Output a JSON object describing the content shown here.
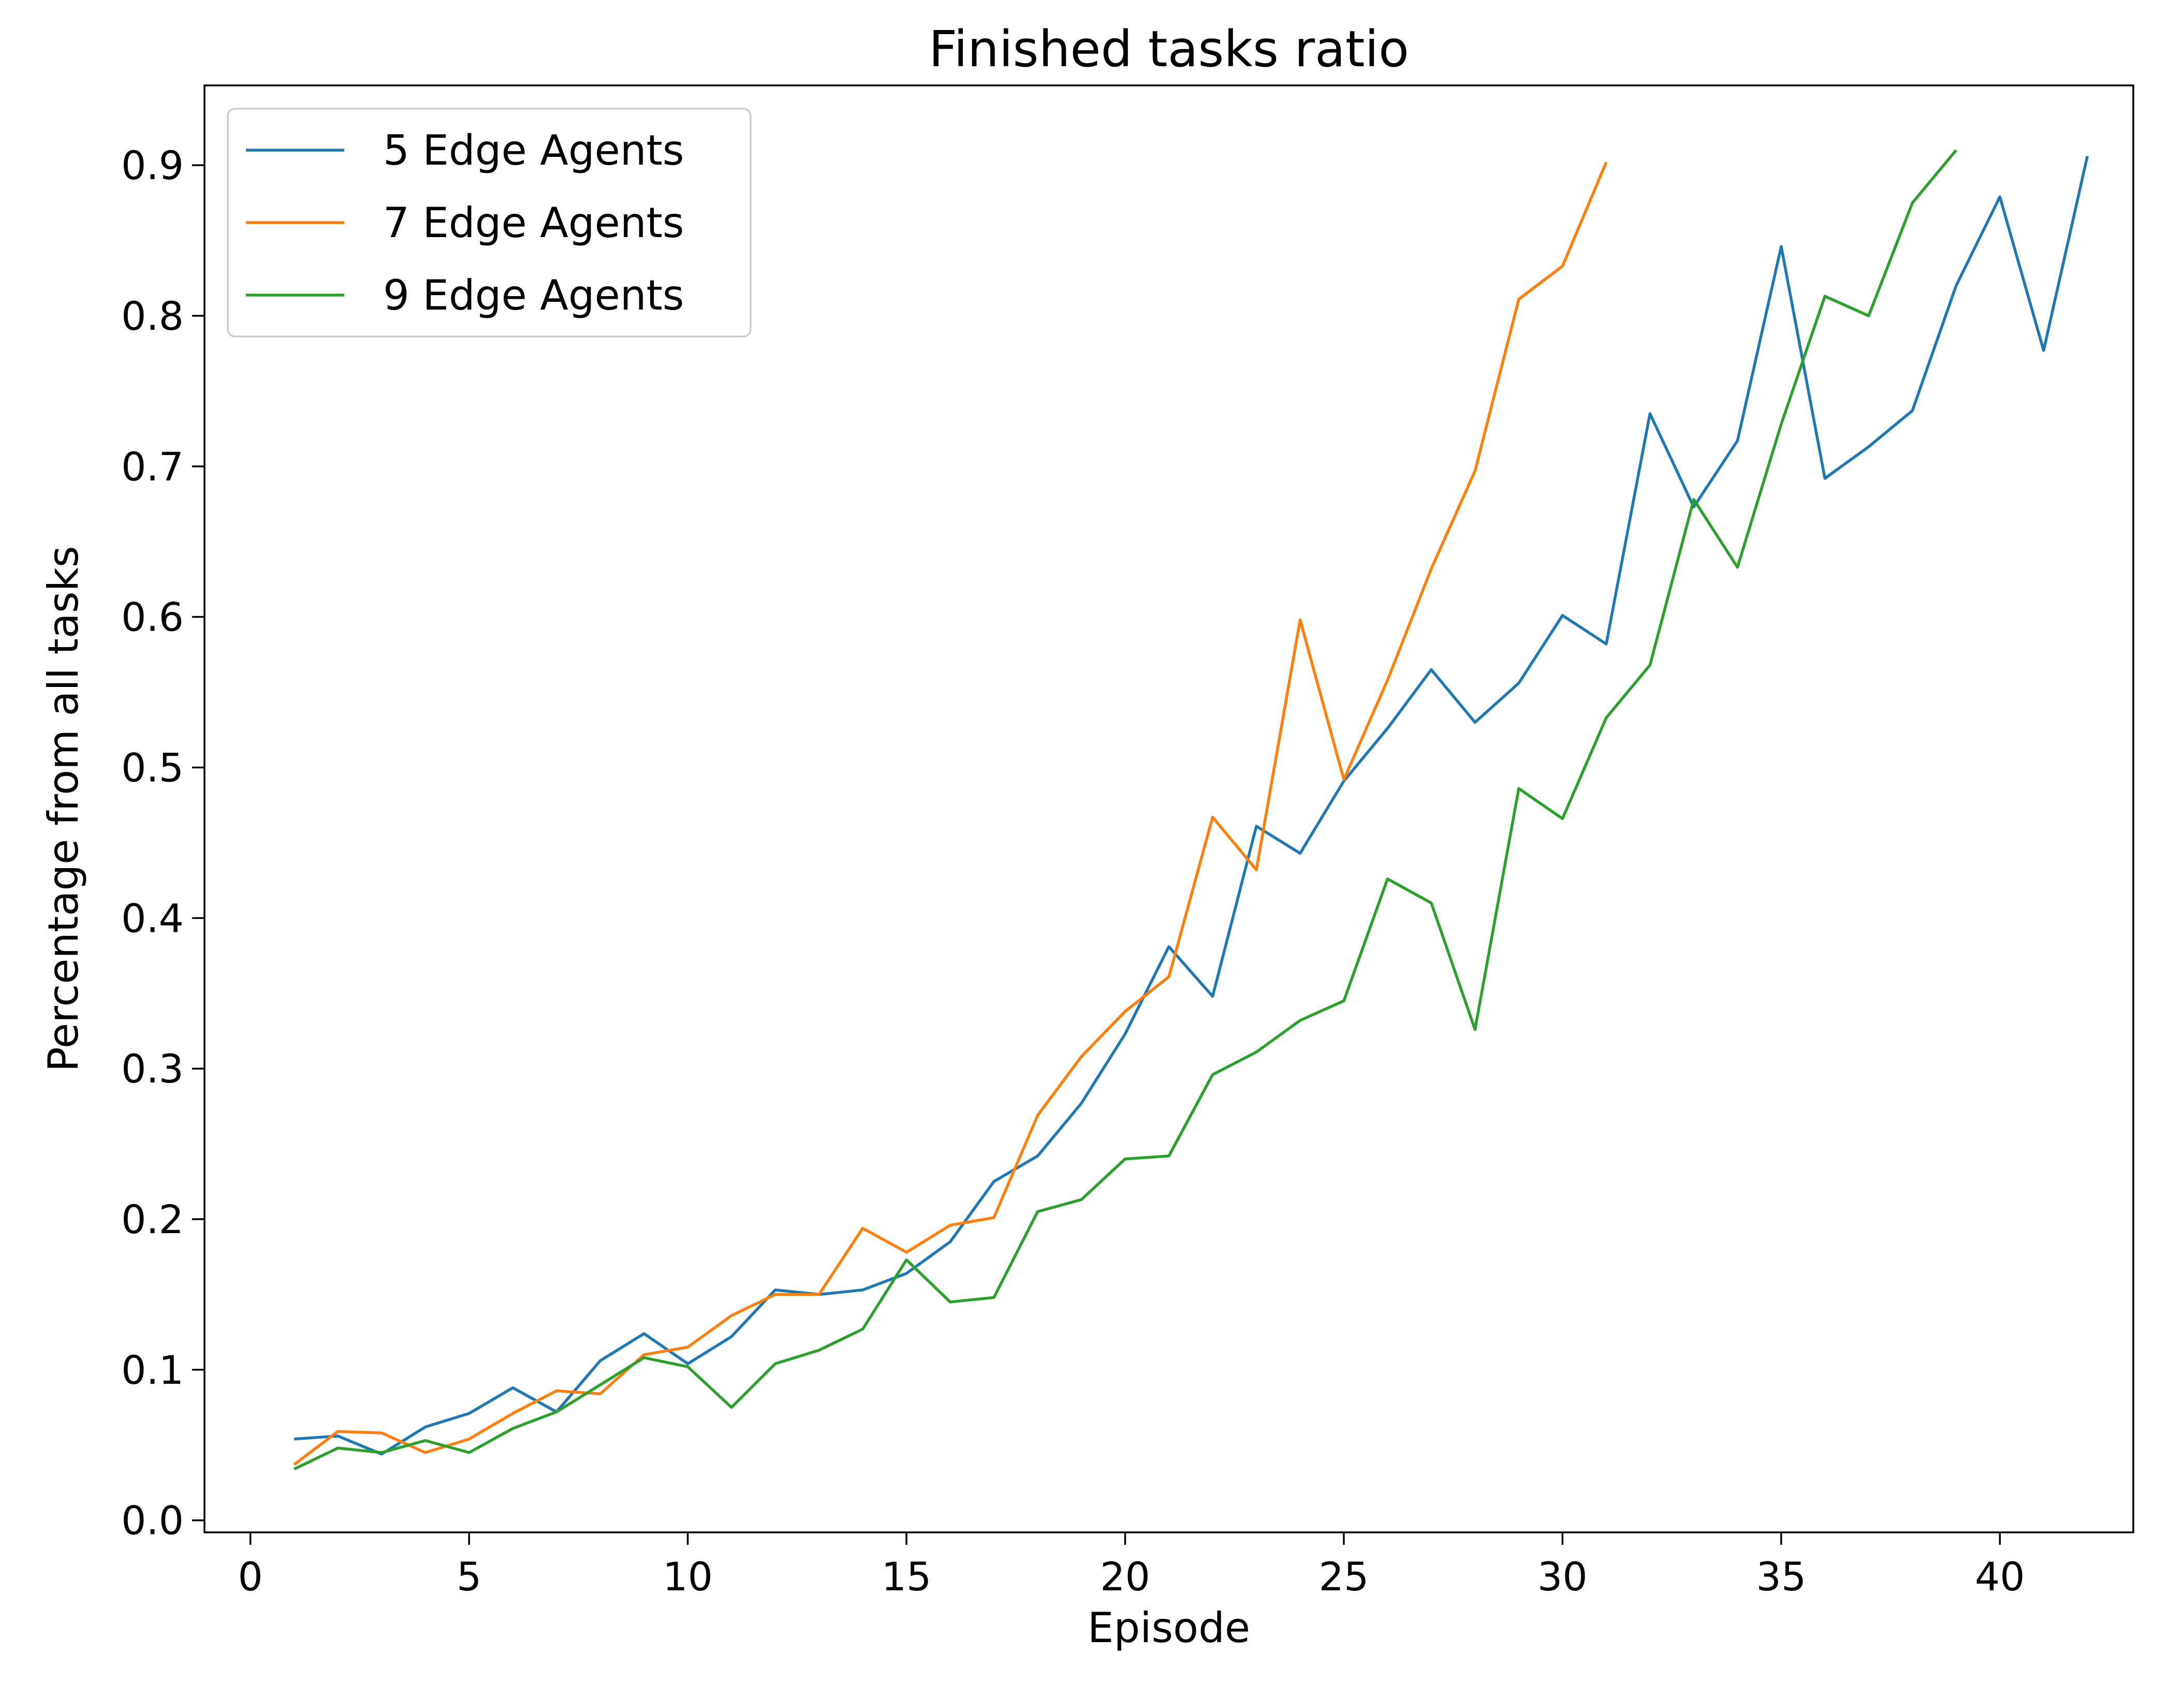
{
  "chart_data": {
    "type": "line",
    "title": "Finished tasks ratio",
    "xlabel": "Episode",
    "ylabel": "Percentage from all tasks",
    "xlim": [
      -1.05,
      43.05
    ],
    "ylim": [
      -0.008,
      0.953
    ],
    "xticks": [
      0,
      5,
      10,
      15,
      20,
      25,
      30,
      35,
      40
    ],
    "yticks": [
      "0.0",
      "0.1",
      "0.2",
      "0.3",
      "0.4",
      "0.5",
      "0.6",
      "0.7",
      "0.8",
      "0.9"
    ],
    "grid": false,
    "legend_position": "top-left",
    "series": [
      {
        "name": "5 Edge Agents",
        "color": "#1f77b4",
        "x": [
          1,
          2,
          3,
          4,
          5,
          6,
          7,
          8,
          9,
          10,
          11,
          12,
          13,
          14,
          15,
          16,
          17,
          18,
          19,
          20,
          21,
          22,
          23,
          24,
          25,
          26,
          27,
          28,
          29,
          30,
          31,
          32,
          33,
          34,
          35,
          36,
          37,
          38,
          39,
          40,
          41,
          42
        ],
        "y": [
          0.054,
          0.056,
          0.044,
          0.062,
          0.071,
          0.088,
          0.072,
          0.106,
          0.124,
          0.104,
          0.122,
          0.153,
          0.15,
          0.153,
          0.164,
          0.185,
          0.225,
          0.242,
          0.277,
          0.323,
          0.381,
          0.348,
          0.461,
          0.443,
          0.491,
          0.526,
          0.565,
          0.53,
          0.556,
          0.601,
          0.582,
          0.735,
          0.673,
          0.717,
          0.846,
          0.692,
          0.713,
          0.737,
          0.82,
          0.879,
          0.777,
          0.906
        ]
      },
      {
        "name": "7 Edge Agents",
        "color": "#ff7f0e",
        "x": [
          1,
          2,
          3,
          4,
          5,
          6,
          7,
          8,
          9,
          10,
          11,
          12,
          13,
          14,
          15,
          16,
          17,
          18,
          19,
          20,
          21,
          22,
          23,
          24,
          25,
          26,
          27,
          28,
          29,
          30,
          31
        ],
        "y": [
          0.037,
          0.059,
          0.058,
          0.045,
          0.054,
          0.071,
          0.086,
          0.084,
          0.11,
          0.115,
          0.136,
          0.15,
          0.15,
          0.194,
          0.178,
          0.196,
          0.201,
          0.269,
          0.308,
          0.338,
          0.361,
          0.467,
          0.432,
          0.598,
          0.492,
          0.558,
          0.632,
          0.697,
          0.811,
          0.833,
          0.902
        ]
      },
      {
        "name": "9 Edge Agents",
        "color": "#2ca02c",
        "x": [
          1,
          2,
          3,
          4,
          5,
          6,
          7,
          8,
          9,
          10,
          11,
          12,
          13,
          14,
          15,
          16,
          17,
          18,
          19,
          20,
          21,
          22,
          23,
          24,
          25,
          26,
          27,
          28,
          29,
          30,
          31,
          32,
          33,
          34,
          35,
          36,
          37,
          38,
          39
        ],
        "y": [
          0.034,
          0.048,
          0.045,
          0.053,
          0.045,
          0.061,
          0.072,
          0.09,
          0.108,
          0.102,
          0.075,
          0.104,
          0.113,
          0.127,
          0.173,
          0.145,
          0.148,
          0.205,
          0.213,
          0.24,
          0.242,
          0.296,
          0.311,
          0.332,
          0.345,
          0.426,
          0.41,
          0.326,
          0.486,
          0.466,
          0.533,
          0.568,
          0.678,
          0.633,
          0.728,
          0.813,
          0.8,
          0.875,
          0.91
        ]
      }
    ]
  }
}
